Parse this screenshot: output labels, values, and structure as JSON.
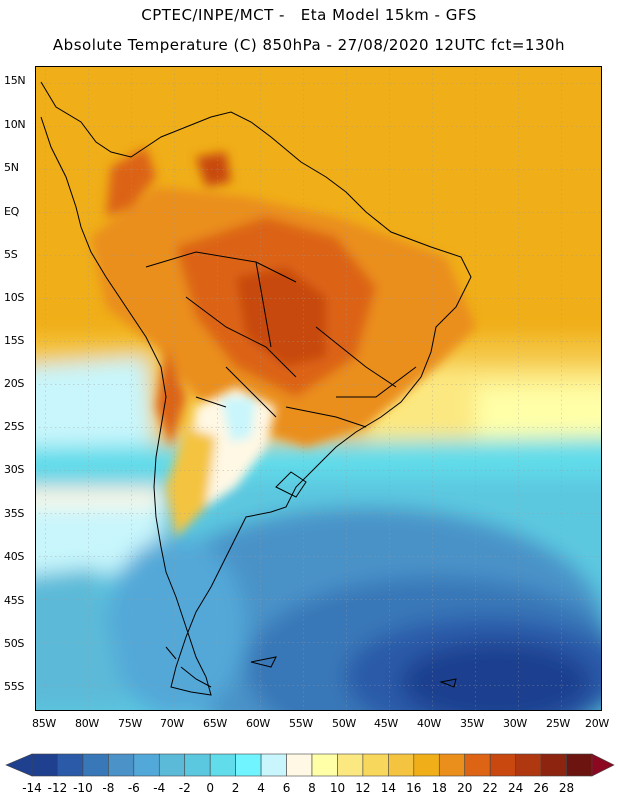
{
  "header": {
    "line1": "CPTEC/INPE/MCT -   Eta Model 15km - GFS",
    "line2": "Absolute Temperature (C) 850hPa - 27/08/2020 12UTC fct=130h"
  },
  "latitude_labels": [
    "15N",
    "10N",
    "5N",
    "EQ",
    "5S",
    "10S",
    "15S",
    "20S",
    "25S",
    "30S",
    "35S",
    "40S",
    "45S",
    "50S",
    "55S"
  ],
  "longitude_labels": [
    "85W",
    "80W",
    "75W",
    "70W",
    "65W",
    "60W",
    "55W",
    "50W",
    "45W",
    "40W",
    "35W",
    "30W",
    "25W",
    "20W"
  ],
  "colorbar": {
    "labels": [
      "-14",
      "-12",
      "-10",
      "-8",
      "-6",
      "-4",
      "-2",
      "0",
      "2",
      "4",
      "6",
      "8",
      "10",
      "12",
      "14",
      "16",
      "18",
      "20",
      "22",
      "24",
      "26",
      "28"
    ],
    "colors": [
      "#1f3f8f",
      "#2a5aa8",
      "#3877b8",
      "#4a92c8",
      "#52a8d8",
      "#5bbad8",
      "#5cc8e0",
      "#60dcea",
      "#70f4ff",
      "#c8f6fc",
      "#fff8e4",
      "#ffffa8",
      "#fce880",
      "#f8d85c",
      "#f4c440",
      "#f0ae18",
      "#ea8e1c",
      "#dc6414",
      "#c84810",
      "#b03810",
      "#8c2410",
      "#6c1410"
    ]
  }
}
